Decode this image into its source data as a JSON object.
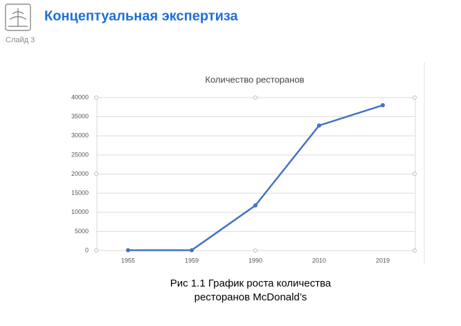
{
  "header": {
    "title": "Концептуальная экспертиза",
    "slide": "Слайд 3"
  },
  "chart_data": {
    "type": "line",
    "title": "Количество ресторанов",
    "categories": [
      "1955",
      "1959",
      "1990",
      "2010",
      "2019"
    ],
    "series": [
      {
        "name": "Количество ресторанов",
        "color": "#4472c4",
        "values": [
          100,
          100,
          11800,
          32700,
          38000
        ]
      }
    ],
    "ylim": [
      0,
      40000
    ],
    "yticks": [
      0,
      5000,
      10000,
      15000,
      20000,
      25000,
      30000,
      35000,
      40000
    ],
    "grid": true
  },
  "caption": [
    "Рис 1.1 График роста количества",
    "ресторанов McDonald’s"
  ]
}
